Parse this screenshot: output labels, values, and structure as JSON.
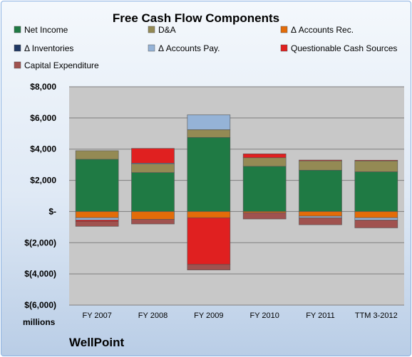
{
  "chart_data": {
    "type": "bar",
    "stacked": true,
    "title": "Free Cash Flow Components",
    "categories": [
      "FY 2007",
      "FY 2008",
      "FY 2009",
      "FY 2010",
      "FY 2011",
      "TTM 3-2012"
    ],
    "ylim": [
      -6000,
      8000
    ],
    "yticks": [
      8000,
      6000,
      4000,
      2000,
      0,
      -2000,
      -4000,
      -6000
    ],
    "ytick_labels": [
      "$8,000",
      "$6,000",
      "$4,000",
      "$2,000",
      "$-",
      "$(2,000)",
      "$(4,000)",
      "$(6,000)"
    ],
    "unit_label": "millions",
    "grid": true,
    "legend_position": "top",
    "series": [
      {
        "name": "Net Income",
        "color": "#1f7a44",
        "values": [
          3350,
          2500,
          4750,
          2900,
          2650,
          2550
        ]
      },
      {
        "name": "D&A",
        "color": "#948a54",
        "values": [
          550,
          550,
          500,
          550,
          600,
          700
        ]
      },
      {
        "name": "Δ Accounts Rec.",
        "color": "#e36c09",
        "values": [
          -400,
          -500,
          -400,
          -80,
          -300,
          -400
        ]
      },
      {
        "name": "Δ Inventories",
        "color": "#1f3864",
        "values": [
          0,
          0,
          0,
          0,
          0,
          0
        ]
      },
      {
        "name": "Δ Accounts Pay.",
        "color": "#95b3d7",
        "values": [
          -150,
          50,
          950,
          0,
          -100,
          -150
        ]
      },
      {
        "name": "Questionable Cash Sources",
        "color": "#e02020",
        "values": [
          -100,
          950,
          -3000,
          250,
          50,
          40
        ]
      },
      {
        "name": "Capital Expenditure",
        "color": "#a0524f",
        "values": [
          -300,
          -300,
          -350,
          -400,
          -450,
          -500
        ]
      }
    ]
  },
  "footer": {
    "company": "WellPoint"
  }
}
